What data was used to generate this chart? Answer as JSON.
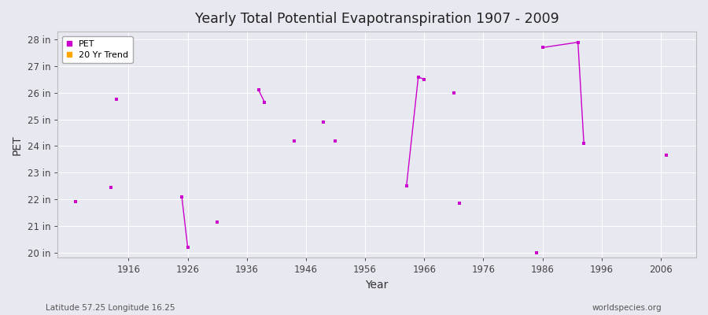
{
  "title": "Yearly Total Potential Evapotranspiration 1907 - 2009",
  "xlabel": "Year",
  "ylabel": "PET",
  "footnote_left": "Latitude 57.25 Longitude 16.25",
  "footnote_right": "worldspecies.org",
  "bg_color": "#e8e8f0",
  "plot_bg_color": "#e8e8f0",
  "grid_color": "#ffffff",
  "ylim": [
    19.8,
    28.3
  ],
  "xlim": [
    1904,
    2012
  ],
  "yticks": [
    20,
    21,
    22,
    23,
    24,
    25,
    26,
    27,
    28
  ],
  "ytick_labels": [
    "20 in",
    "21 in",
    "22 in",
    "23 in",
    "24 in",
    "25 in",
    "26 in",
    "27 in",
    "28 in"
  ],
  "xticks": [
    1916,
    1926,
    1936,
    1946,
    1956,
    1966,
    1976,
    1986,
    1996,
    2006
  ],
  "pet_color": "#cc00cc",
  "trend_color": "#ffa500",
  "pet_data": [
    [
      1907,
      21.9
    ],
    [
      1913,
      22.45
    ],
    [
      1914,
      25.75
    ],
    [
      1925,
      22.1
    ],
    [
      1926,
      20.2
    ],
    [
      1931,
      21.15
    ],
    [
      1938,
      26.1
    ],
    [
      1939,
      25.65
    ],
    [
      1944,
      24.2
    ],
    [
      1949,
      24.9
    ],
    [
      1951,
      24.2
    ],
    [
      1963,
      22.5
    ],
    [
      1965,
      26.6
    ],
    [
      1966,
      26.5
    ],
    [
      1971,
      26.0
    ],
    [
      1972,
      21.85
    ],
    [
      1985,
      20.0
    ],
    [
      1986,
      27.7
    ],
    [
      1992,
      27.9
    ],
    [
      1993,
      24.1
    ],
    [
      2007,
      23.65
    ]
  ],
  "trend_segments": [
    [
      [
        1925,
        22.1
      ],
      [
        1926,
        20.2
      ]
    ],
    [
      [
        1938,
        26.1
      ],
      [
        1939,
        25.65
      ]
    ],
    [
      [
        1963,
        22.5
      ],
      [
        1965,
        26.6
      ],
      [
        1966,
        26.5
      ]
    ],
    [
      [
        1986,
        27.7
      ],
      [
        1992,
        27.9
      ],
      [
        1993,
        24.1
      ]
    ]
  ]
}
